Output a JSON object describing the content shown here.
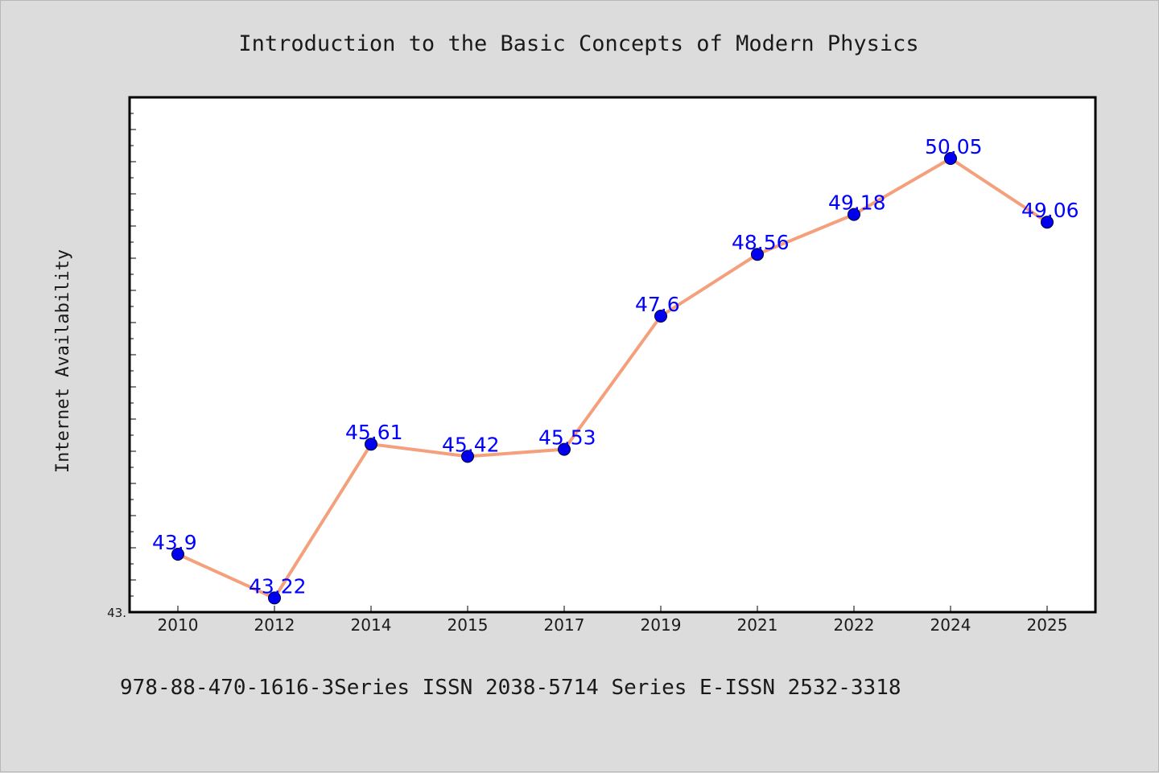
{
  "footer": "978-88-470-1616-3Series ISSN 2038-5714 Series E-ISSN 2532-3318",
  "colors": {
    "background": "#dcdcdc",
    "plot_background": "#ffffff",
    "line": "#f4a07c",
    "marker": "#0000ee",
    "data_label": "#0000ff"
  },
  "chart_data": {
    "type": "line",
    "title": "Introduction to the Basic Concepts of Modern Physics",
    "xlabel": "",
    "ylabel": "Internet Availability",
    "categories": [
      "2010",
      "2012",
      "2014",
      "2015",
      "2017",
      "2019",
      "2021",
      "2022",
      "2024",
      "2025"
    ],
    "series": [
      {
        "name": "",
        "values": [
          43.9,
          43.22,
          45.61,
          45.42,
          45.53,
          47.6,
          48.56,
          49.18,
          50.05,
          49.06
        ]
      }
    ],
    "data_labels": [
      "43.9",
      "43.22",
      "45.61",
      "45.42",
      "45.53",
      "47.6",
      "48.56",
      "49.18",
      "50.05",
      "49.06"
    ],
    "y_min_label": "43.",
    "ylim": [
      43.0,
      51.0
    ],
    "grid": false,
    "legend": "none"
  }
}
